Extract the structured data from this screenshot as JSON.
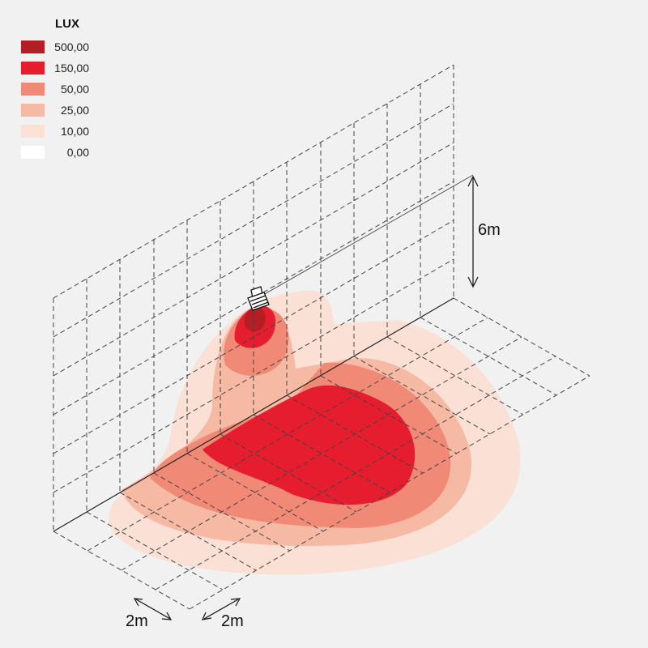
{
  "legend": {
    "title": "LUX",
    "levels": [
      {
        "value": "500,00",
        "color": "#b21f24"
      },
      {
        "value": "150,00",
        "color": "#e51d2e"
      },
      {
        "value": "50,00",
        "color": "#f08a77"
      },
      {
        "value": "25,00",
        "color": "#f6b9a4"
      },
      {
        "value": "10,00",
        "color": "#fbe0d6"
      },
      {
        "value": "0,00",
        "color": "#ffffff"
      }
    ]
  },
  "dimensions": {
    "height": "6m",
    "grid_spacing_left": "2m",
    "grid_spacing_right": "2m"
  },
  "fixture": {
    "icon": "floodlight-icon"
  }
}
